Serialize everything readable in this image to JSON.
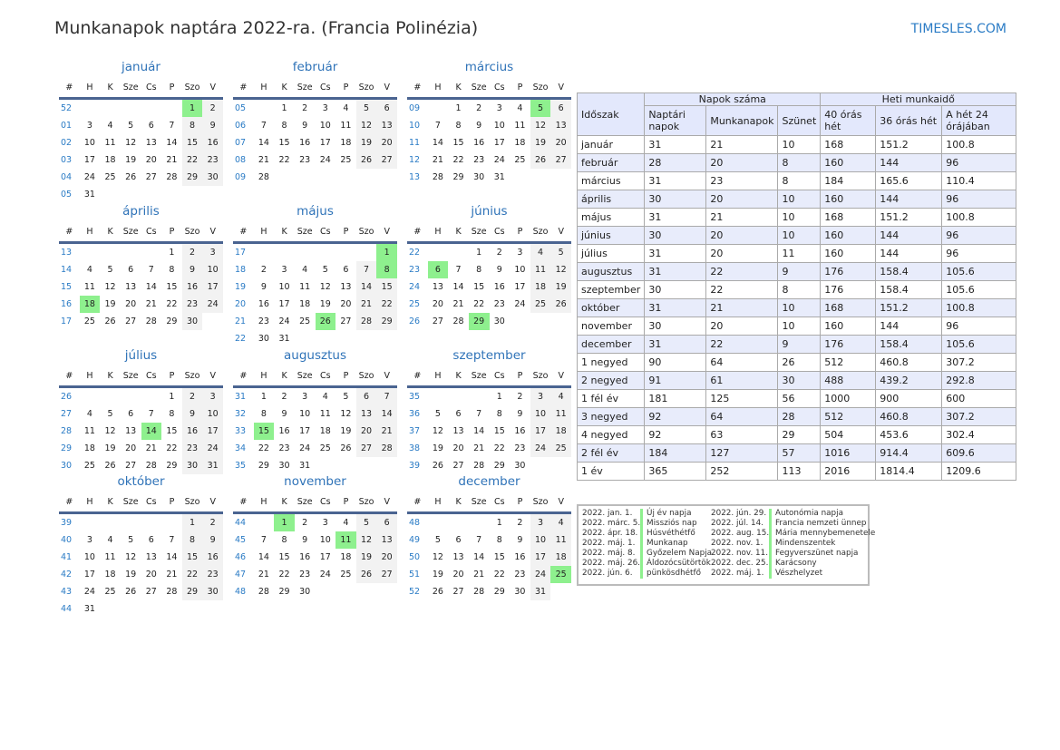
{
  "title": "Munkanapok naptára 2022-ra. (Francia Polinézia)",
  "site": "TIMESLES.COM",
  "colors": {
    "holiday": "#8ef08e",
    "weekend": "#f2f2f2",
    "accent": "#2f73b8"
  },
  "weekday_headers": [
    "#",
    "H",
    "K",
    "Sze",
    "Cs",
    "P",
    "Szo",
    "V"
  ],
  "months": [
    {
      "name": "január",
      "holidays": [
        "1"
      ],
      "rows": [
        [
          "52",
          "",
          "",
          "",
          "",
          "",
          "1",
          "2"
        ],
        [
          "01",
          "3",
          "4",
          "5",
          "6",
          "7",
          "8",
          "9"
        ],
        [
          "02",
          "10",
          "11",
          "12",
          "13",
          "14",
          "15",
          "16"
        ],
        [
          "03",
          "17",
          "18",
          "19",
          "20",
          "21",
          "22",
          "23"
        ],
        [
          "04",
          "24",
          "25",
          "26",
          "27",
          "28",
          "29",
          "30"
        ],
        [
          "05",
          "31",
          "",
          "",
          "",
          "",
          "",
          ""
        ]
      ]
    },
    {
      "name": "február",
      "holidays": [],
      "rows": [
        [
          "05",
          "",
          "1",
          "2",
          "3",
          "4",
          "5",
          "6"
        ],
        [
          "06",
          "7",
          "8",
          "9",
          "10",
          "11",
          "12",
          "13"
        ],
        [
          "07",
          "14",
          "15",
          "16",
          "17",
          "18",
          "19",
          "20"
        ],
        [
          "08",
          "21",
          "22",
          "23",
          "24",
          "25",
          "26",
          "27"
        ],
        [
          "09",
          "28",
          "",
          "",
          "",
          "",
          "",
          ""
        ]
      ]
    },
    {
      "name": "március",
      "holidays": [
        "5"
      ],
      "rows": [
        [
          "09",
          "",
          "1",
          "2",
          "3",
          "4",
          "5",
          "6"
        ],
        [
          "10",
          "7",
          "8",
          "9",
          "10",
          "11",
          "12",
          "13"
        ],
        [
          "11",
          "14",
          "15",
          "16",
          "17",
          "18",
          "19",
          "20"
        ],
        [
          "12",
          "21",
          "22",
          "23",
          "24",
          "25",
          "26",
          "27"
        ],
        [
          "13",
          "28",
          "29",
          "30",
          "31",
          "",
          "",
          ""
        ]
      ]
    },
    {
      "name": "április",
      "holidays": [
        "18"
      ],
      "rows": [
        [
          "13",
          "",
          "",
          "",
          "",
          "1",
          "2",
          "3"
        ],
        [
          "14",
          "4",
          "5",
          "6",
          "7",
          "8",
          "9",
          "10"
        ],
        [
          "15",
          "11",
          "12",
          "13",
          "14",
          "15",
          "16",
          "17"
        ],
        [
          "16",
          "18",
          "19",
          "20",
          "21",
          "22",
          "23",
          "24"
        ],
        [
          "17",
          "25",
          "26",
          "27",
          "28",
          "29",
          "30",
          ""
        ]
      ]
    },
    {
      "name": "május",
      "holidays": [
        "1",
        "8",
        "26"
      ],
      "rows": [
        [
          "17",
          "",
          "",
          "",
          "",
          "",
          "",
          "1"
        ],
        [
          "18",
          "2",
          "3",
          "4",
          "5",
          "6",
          "7",
          "8"
        ],
        [
          "19",
          "9",
          "10",
          "11",
          "12",
          "13",
          "14",
          "15"
        ],
        [
          "20",
          "16",
          "17",
          "18",
          "19",
          "20",
          "21",
          "22"
        ],
        [
          "21",
          "23",
          "24",
          "25",
          "26",
          "27",
          "28",
          "29"
        ],
        [
          "22",
          "30",
          "31",
          "",
          "",
          "",
          "",
          ""
        ]
      ]
    },
    {
      "name": "június",
      "holidays": [
        "6",
        "29"
      ],
      "rows": [
        [
          "22",
          "",
          "",
          "1",
          "2",
          "3",
          "4",
          "5"
        ],
        [
          "23",
          "6",
          "7",
          "8",
          "9",
          "10",
          "11",
          "12"
        ],
        [
          "24",
          "13",
          "14",
          "15",
          "16",
          "17",
          "18",
          "19"
        ],
        [
          "25",
          "20",
          "21",
          "22",
          "23",
          "24",
          "25",
          "26"
        ],
        [
          "26",
          "27",
          "28",
          "29",
          "30",
          "",
          "",
          ""
        ]
      ]
    },
    {
      "name": "július",
      "holidays": [
        "14"
      ],
      "rows": [
        [
          "26",
          "",
          "",
          "",
          "",
          "1",
          "2",
          "3"
        ],
        [
          "27",
          "4",
          "5",
          "6",
          "7",
          "8",
          "9",
          "10"
        ],
        [
          "28",
          "11",
          "12",
          "13",
          "14",
          "15",
          "16",
          "17"
        ],
        [
          "29",
          "18",
          "19",
          "20",
          "21",
          "22",
          "23",
          "24"
        ],
        [
          "30",
          "25",
          "26",
          "27",
          "28",
          "29",
          "30",
          "31"
        ]
      ]
    },
    {
      "name": "augusztus",
      "holidays": [
        "15"
      ],
      "rows": [
        [
          "31",
          "1",
          "2",
          "3",
          "4",
          "5",
          "6",
          "7"
        ],
        [
          "32",
          "8",
          "9",
          "10",
          "11",
          "12",
          "13",
          "14"
        ],
        [
          "33",
          "15",
          "16",
          "17",
          "18",
          "19",
          "20",
          "21"
        ],
        [
          "34",
          "22",
          "23",
          "24",
          "25",
          "26",
          "27",
          "28"
        ],
        [
          "35",
          "29",
          "30",
          "31",
          "",
          "",
          "",
          ""
        ]
      ]
    },
    {
      "name": "szeptember",
      "holidays": [],
      "rows": [
        [
          "35",
          "",
          "",
          "",
          "1",
          "2",
          "3",
          "4"
        ],
        [
          "36",
          "5",
          "6",
          "7",
          "8",
          "9",
          "10",
          "11"
        ],
        [
          "37",
          "12",
          "13",
          "14",
          "15",
          "16",
          "17",
          "18"
        ],
        [
          "38",
          "19",
          "20",
          "21",
          "22",
          "23",
          "24",
          "25"
        ],
        [
          "39",
          "26",
          "27",
          "28",
          "29",
          "30",
          "",
          ""
        ]
      ]
    },
    {
      "name": "október",
      "holidays": [],
      "rows": [
        [
          "39",
          "",
          "",
          "",
          "",
          "",
          "1",
          "2"
        ],
        [
          "40",
          "3",
          "4",
          "5",
          "6",
          "7",
          "8",
          "9"
        ],
        [
          "41",
          "10",
          "11",
          "12",
          "13",
          "14",
          "15",
          "16"
        ],
        [
          "42",
          "17",
          "18",
          "19",
          "20",
          "21",
          "22",
          "23"
        ],
        [
          "43",
          "24",
          "25",
          "26",
          "27",
          "28",
          "29",
          "30"
        ],
        [
          "44",
          "31",
          "",
          "",
          "",
          "",
          "",
          ""
        ]
      ]
    },
    {
      "name": "november",
      "holidays": [
        "1",
        "11"
      ],
      "rows": [
        [
          "44",
          "",
          "1",
          "2",
          "3",
          "4",
          "5",
          "6"
        ],
        [
          "45",
          "7",
          "8",
          "9",
          "10",
          "11",
          "12",
          "13"
        ],
        [
          "46",
          "14",
          "15",
          "16",
          "17",
          "18",
          "19",
          "20"
        ],
        [
          "47",
          "21",
          "22",
          "23",
          "24",
          "25",
          "26",
          "27"
        ],
        [
          "48",
          "28",
          "29",
          "30",
          "",
          "",
          "",
          ""
        ]
      ]
    },
    {
      "name": "december",
      "holidays": [
        "25"
      ],
      "rows": [
        [
          "48",
          "",
          "",
          "",
          "1",
          "2",
          "3",
          "4"
        ],
        [
          "49",
          "5",
          "6",
          "7",
          "8",
          "9",
          "10",
          "11"
        ],
        [
          "50",
          "12",
          "13",
          "14",
          "15",
          "16",
          "17",
          "18"
        ],
        [
          "51",
          "19",
          "20",
          "21",
          "22",
          "23",
          "24",
          "25"
        ],
        [
          "52",
          "26",
          "27",
          "28",
          "29",
          "30",
          "31",
          ""
        ]
      ]
    }
  ],
  "stats": {
    "h_period": "Időszak",
    "h_days": "Napok száma",
    "h_hours": "Heti munkaidő",
    "sub": [
      "Naptári napok",
      "Munkanapok",
      "Szünet",
      "40 órás hét",
      "36 órás hét",
      "A hét 24 órájában"
    ],
    "rows": [
      [
        "január",
        "31",
        "21",
        "10",
        "168",
        "151.2",
        "100.8"
      ],
      [
        "február",
        "28",
        "20",
        "8",
        "160",
        "144",
        "96"
      ],
      [
        "március",
        "31",
        "23",
        "8",
        "184",
        "165.6",
        "110.4"
      ],
      [
        "április",
        "30",
        "20",
        "10",
        "160",
        "144",
        "96"
      ],
      [
        "május",
        "31",
        "21",
        "10",
        "168",
        "151.2",
        "100.8"
      ],
      [
        "június",
        "30",
        "20",
        "10",
        "160",
        "144",
        "96"
      ],
      [
        "július",
        "31",
        "20",
        "11",
        "160",
        "144",
        "96"
      ],
      [
        "augusztus",
        "31",
        "22",
        "9",
        "176",
        "158.4",
        "105.6"
      ],
      [
        "szeptember",
        "30",
        "22",
        "8",
        "176",
        "158.4",
        "105.6"
      ],
      [
        "október",
        "31",
        "21",
        "10",
        "168",
        "151.2",
        "100.8"
      ],
      [
        "november",
        "30",
        "20",
        "10",
        "160",
        "144",
        "96"
      ],
      [
        "december",
        "31",
        "22",
        "9",
        "176",
        "158.4",
        "105.6"
      ],
      [
        "1 negyed",
        "90",
        "64",
        "26",
        "512",
        "460.8",
        "307.2"
      ],
      [
        "2 negyed",
        "91",
        "61",
        "30",
        "488",
        "439.2",
        "292.8"
      ],
      [
        "1 fél év",
        "181",
        "125",
        "56",
        "1000",
        "900",
        "600"
      ],
      [
        "3 negyed",
        "92",
        "64",
        "28",
        "512",
        "460.8",
        "307.2"
      ],
      [
        "4 negyed",
        "92",
        "63",
        "29",
        "504",
        "453.6",
        "302.4"
      ],
      [
        "2 fél év",
        "184",
        "127",
        "57",
        "1016",
        "914.4",
        "609.6"
      ],
      [
        "1 év",
        "365",
        "252",
        "113",
        "2016",
        "1814.4",
        "1209.6"
      ]
    ]
  },
  "legend": [
    [
      "2022. jan. 1.",
      "Új év napja",
      "2022. jún. 29.",
      "Autonómia napja"
    ],
    [
      "2022. márc. 5.",
      "Missziós nap",
      "2022. júl. 14.",
      "Francia nemzeti ünnep"
    ],
    [
      "2022. ápr. 18.",
      "Húsvéthétfő",
      "2022. aug. 15.",
      "Mária mennybemenetele"
    ],
    [
      "2022. máj. 1.",
      "Munkanap",
      "2022. nov. 1.",
      "Mindenszentek"
    ],
    [
      "2022. máj. 8.",
      "Győzelem Napja",
      "2022. nov. 11.",
      "Fegyverszünet napja"
    ],
    [
      "2022. máj. 26.",
      "Áldozócsütörtök",
      "2022. dec. 25.",
      "Karácsony"
    ],
    [
      "2022. jún. 6.",
      "pünkösdhétfő",
      "2022. máj. 1.",
      "Vészhelyzet"
    ]
  ]
}
